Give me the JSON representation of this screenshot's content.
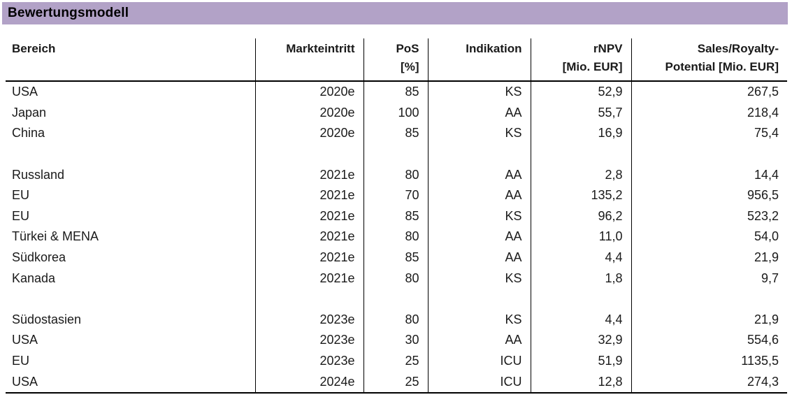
{
  "title": "Bewertungsmodell",
  "colors": {
    "title_bar_bg": "#b2a2c7",
    "text": "#1a1a1a",
    "line": "#000000"
  },
  "table": {
    "columns": [
      {
        "id": "bereich",
        "label": "Bereich",
        "label2": "",
        "align": "left"
      },
      {
        "id": "markteintritt",
        "label": "Markteintritt",
        "label2": "",
        "align": "right"
      },
      {
        "id": "pos",
        "label": "PoS",
        "label2": "[%]",
        "align": "right"
      },
      {
        "id": "indikation",
        "label": "Indikation",
        "label2": "",
        "align": "right"
      },
      {
        "id": "rnpv",
        "label": "rNPV",
        "label2": "[Mio. EUR]",
        "align": "right"
      },
      {
        "id": "sales",
        "label": "Sales/Royalty-",
        "label2": "Potential [Mio. EUR]",
        "align": "right"
      }
    ],
    "rows": [
      [
        "USA",
        "2020e",
        "85",
        "KS",
        "52,9",
        "267,5"
      ],
      [
        "Japan",
        "2020e",
        "100",
        "AA",
        "55,7",
        "218,4"
      ],
      [
        "China",
        "2020e",
        "85",
        "KS",
        "16,9",
        "75,4"
      ],
      [
        "",
        "",
        "",
        "",
        "",
        ""
      ],
      [
        "Russland",
        "2021e",
        "80",
        "AA",
        "2,8",
        "14,4"
      ],
      [
        "EU",
        "2021e",
        "70",
        "AA",
        "135,2",
        "956,5"
      ],
      [
        "EU",
        "2021e",
        "85",
        "KS",
        "96,2",
        "523,2"
      ],
      [
        "Türkei & MENA",
        "2021e",
        "80",
        "AA",
        "11,0",
        "54,0"
      ],
      [
        "Südkorea",
        "2021e",
        "85",
        "AA",
        "4,4",
        "21,9"
      ],
      [
        "Kanada",
        "2021e",
        "80",
        "KS",
        "1,8",
        "9,7"
      ],
      [
        "",
        "",
        "",
        "",
        "",
        ""
      ],
      [
        "Südostasien",
        "2023e",
        "80",
        "KS",
        "4,4",
        "21,9"
      ],
      [
        "USA",
        "2023e",
        "30",
        "AA",
        "32,9",
        "554,6"
      ],
      [
        "EU",
        "2023e",
        "25",
        "ICU",
        "51,9",
        "1135,5"
      ],
      [
        "USA",
        "2024e",
        "25",
        "ICU",
        "12,8",
        "274,3"
      ]
    ]
  }
}
